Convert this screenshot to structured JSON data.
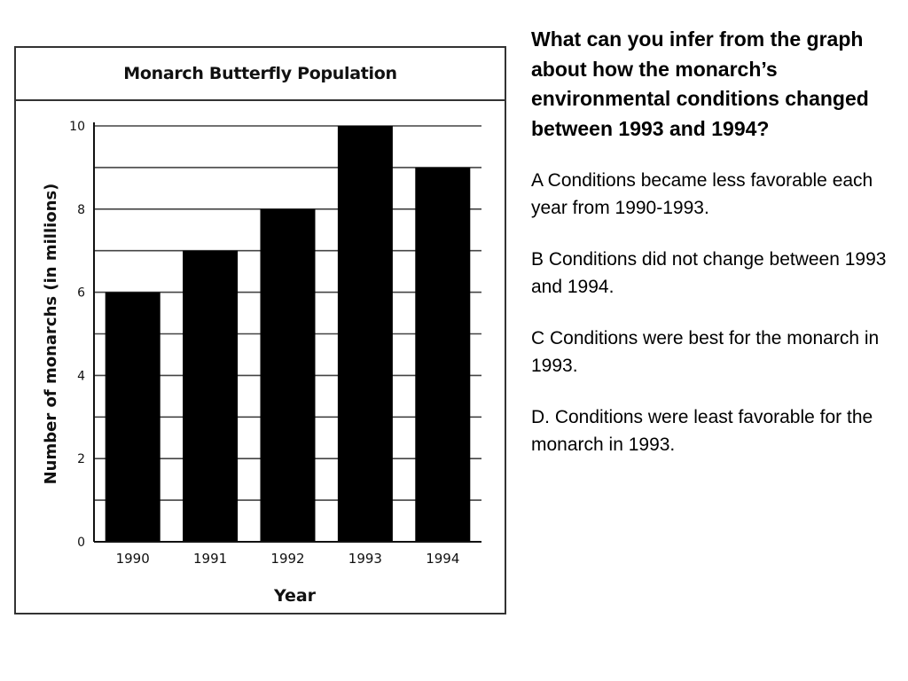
{
  "question": {
    "prompt": "What can you infer from the graph about how the monarch’s environmental conditions changed between 1993 and 1994?",
    "choices": [
      {
        "text": "A  Conditions became less favorable each year from 1990-1993."
      },
      {
        "text": "B  Conditions did not change between 1993 and 1994."
      },
      {
        "text": "C  Conditions were best for the monarch in 1993."
      },
      {
        "text": "D. Conditions were least favorable for the monarch in 1993."
      }
    ]
  },
  "chart_data": {
    "type": "bar",
    "title": "Monarch Butterfly Population",
    "xlabel": "Year",
    "ylabel": "Number of monarchs (in millions)",
    "categories": [
      "1990",
      "1991",
      "1992",
      "1993",
      "1994"
    ],
    "values": [
      6,
      7,
      8,
      10,
      9
    ],
    "ylim": [
      0,
      10
    ],
    "yticks": [
      0,
      2,
      4,
      6,
      8,
      10
    ],
    "grid": true,
    "bar_color": "#000000"
  }
}
